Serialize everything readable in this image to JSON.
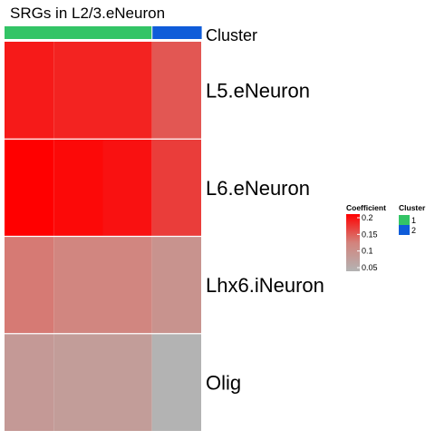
{
  "chart_data": {
    "type": "heatmap",
    "title": "SRGs in L2/3.eNeuron",
    "rows": [
      "L5.eNeuron",
      "L6.eNeuron",
      "Lhx6.iNeuron",
      "Olig"
    ],
    "columns_count": 4,
    "values": [
      [
        0.185,
        0.18,
        0.18,
        0.15
      ],
      [
        0.2,
        0.195,
        0.19,
        0.165
      ],
      [
        0.13,
        0.12,
        0.12,
        0.1
      ],
      [
        0.09,
        0.085,
        0.085,
        0.05
      ]
    ],
    "column_annotation": {
      "label": "Cluster",
      "values": [
        1,
        1,
        1,
        2
      ]
    },
    "legends": {
      "coefficient": {
        "title": "Coefficient",
        "ticks": [
          0.2,
          0.15,
          0.1,
          0.05
        ],
        "tick_labels": [
          "0.2",
          "0.15",
          "0.1",
          "0.05"
        ],
        "range": [
          0.05,
          0.2
        ],
        "colors": [
          "#b3b3b3",
          "#d3837c",
          "#ff0000"
        ]
      },
      "cluster": {
        "title": "Cluster",
        "entries": [
          {
            "label": "1",
            "color": "#33c466"
          },
          {
            "label": "2",
            "color": "#0f5cd9"
          }
        ]
      }
    },
    "legend_placement": "right"
  }
}
